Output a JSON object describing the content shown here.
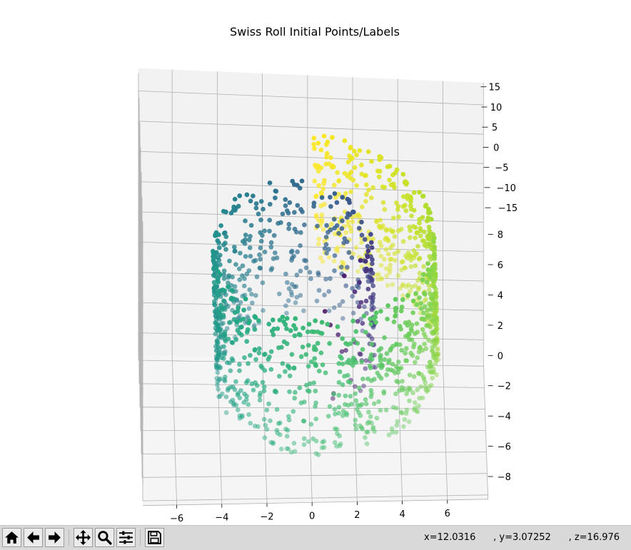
{
  "window": {
    "title": "Swiss Roll Initial Points/Labels"
  },
  "toolbar": {
    "buttons": [
      {
        "name": "home",
        "icon": "home-icon"
      },
      {
        "name": "back",
        "icon": "arrow-left-icon"
      },
      {
        "name": "forward",
        "icon": "arrow-right-icon"
      },
      {
        "name": "pan",
        "icon": "move-icon"
      },
      {
        "name": "zoom",
        "icon": "zoom-icon"
      },
      {
        "name": "configure",
        "icon": "sliders-icon"
      },
      {
        "name": "save",
        "icon": "floppy-icon"
      }
    ],
    "coords": {
      "x": "x=12.0316",
      "y": ", y=3.07252",
      "z": ", z=16.976"
    }
  },
  "chart_data": {
    "type": "scatter",
    "projection": "3d",
    "title": "Swiss Roll Initial Points/Labels",
    "xlabel": "",
    "ylabel": "",
    "zlabel": "",
    "xlim": [
      -7.5,
      7.8
    ],
    "ylim": [
      -16,
      16
    ],
    "zlim": [
      -9.5,
      9.5
    ],
    "x_ticks": [
      "−6",
      "−4",
      "−2",
      "0",
      "2",
      "4",
      "6"
    ],
    "y_ticks": [
      "15",
      "10",
      "5",
      "0",
      "−5",
      "−10",
      "−15"
    ],
    "z_ticks": [
      "8",
      "6",
      "4",
      "2",
      "0",
      "−2",
      "−4",
      "−6",
      "−8"
    ],
    "colormap": "viridis",
    "grid": true,
    "n_points": 1500,
    "roll_parameter_t": [
      4.7,
      14.1
    ],
    "y_extent": [
      -15,
      15
    ],
    "point_size": 5,
    "pane_color": "#f2f2f2",
    "grid_color": "#b0b0b0"
  }
}
